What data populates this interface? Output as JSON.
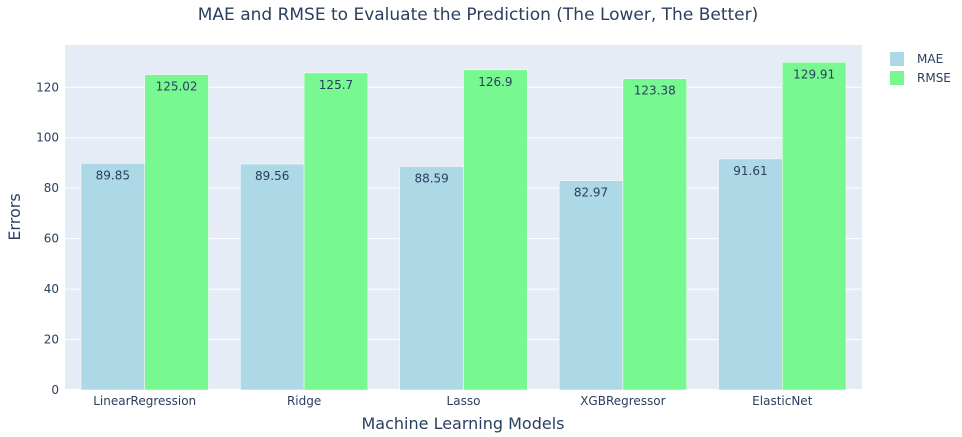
{
  "chart_data": {
    "type": "bar",
    "title": "MAE and RMSE to Evaluate the Prediction (The Lower, The Better)",
    "xlabel": "Machine Learning Models",
    "ylabel": "Errors",
    "categories": [
      "LinearRegression",
      "Ridge",
      "Lasso",
      "XGBRegressor",
      "ElasticNet"
    ],
    "series": [
      {
        "name": "MAE",
        "values": [
          89.85,
          89.56,
          88.59,
          82.97,
          91.61
        ],
        "color": "#add8e6",
        "labels": [
          "89.85",
          "89.56",
          "88.59",
          "82.97",
          "91.61"
        ]
      },
      {
        "name": "RMSE",
        "values": [
          125.02,
          125.7,
          126.9,
          123.38,
          129.91
        ],
        "color": "#77f890",
        "labels": [
          "125.02",
          "125.7",
          "126.9",
          "123.38",
          "129.91"
        ]
      }
    ],
    "ylim": [
      0,
      136.75
    ],
    "yticks": [
      0,
      20,
      40,
      60,
      80,
      100,
      120
    ],
    "grid": true,
    "legend_position": "top-right",
    "plot_background": "#e5ecf6",
    "text_color": "#2a3f5f"
  }
}
